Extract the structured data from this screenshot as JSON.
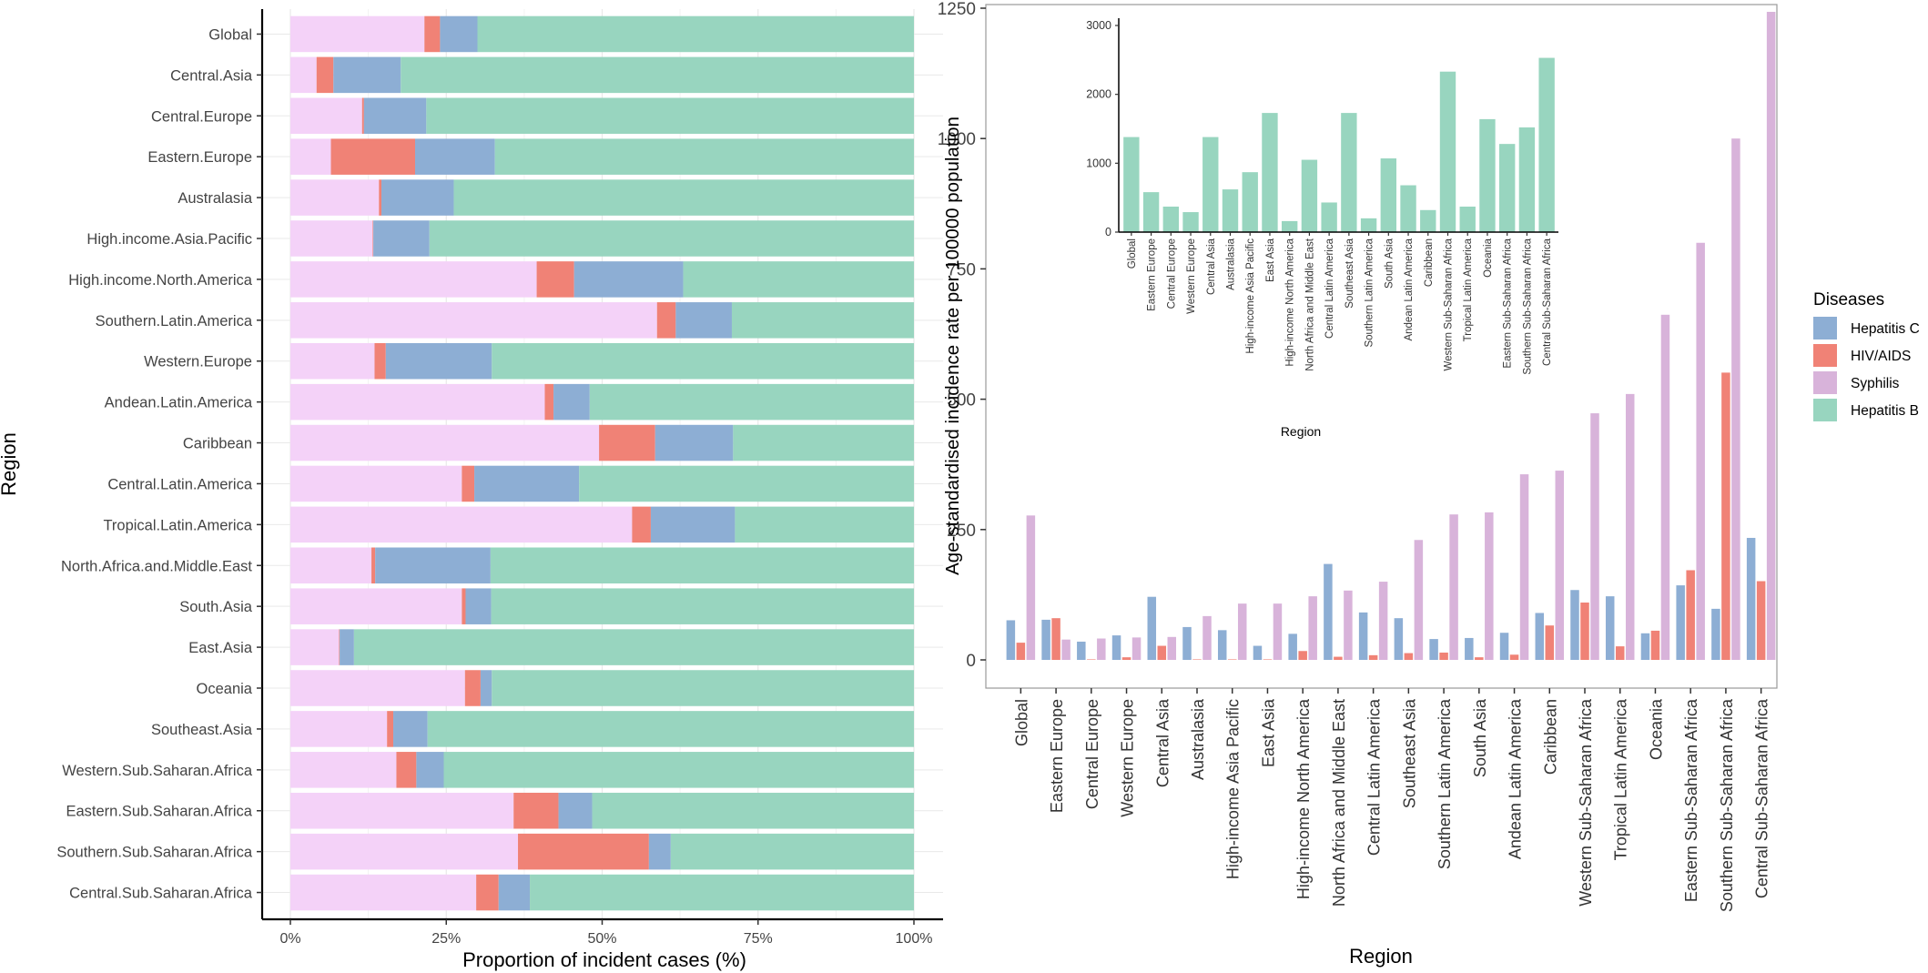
{
  "colors": {
    "Syphilis": "#f4d2f8",
    "HIV/AIDS": "#f08276",
    "Hepatitis C": "#8daed4",
    "Hepatitis B": "#98d5bf",
    "Syphilis_right": "#d8b3da",
    "grid": "#e9e9e9",
    "panel_border": "#9a9a9a"
  },
  "chart_data": [
    {
      "type": "bar",
      "orientation": "horizontal-stacked",
      "xlabel": "Proportion of incident cases (%)",
      "ylabel": "Region",
      "xlim": [
        0,
        100
      ],
      "xticks": [
        "0%",
        "25%",
        "50%",
        "75%",
        "100%"
      ],
      "stack_order": [
        "Syphilis",
        "HIV/AIDS",
        "Hepatitis C",
        "Hepatitis B"
      ],
      "categories": [
        "Global",
        "Central.Asia",
        "Central.Europe",
        "Eastern.Europe",
        "Australasia",
        "High.income.Asia.Pacific",
        "High.income.North.America",
        "Southern.Latin.America",
        "Western.Europe",
        "Andean.Latin.America",
        "Caribbean",
        "Central.Latin.America",
        "Tropical.Latin.America",
        "North.Africa.and.Middle.East",
        "South.Asia",
        "East.Asia",
        "Oceania",
        "Southeast.Asia",
        "Western.Sub.Saharan.Africa",
        "Eastern.Sub.Saharan.Africa",
        "Southern.Sub.Saharan.Africa",
        "Central.Sub.Saharan.Africa"
      ],
      "series": [
        {
          "name": "Syphilis",
          "values": [
            21.5,
            4.2,
            11.5,
            6.5,
            14.2,
            13.2,
            39.5,
            58.8,
            13.5,
            40.8,
            49.5,
            27.5,
            54.8,
            13.0,
            27.5,
            7.8,
            28.0,
            15.5,
            17.0,
            35.8,
            36.5,
            29.8
          ]
        },
        {
          "name": "HIV/AIDS",
          "values": [
            2.5,
            2.7,
            0.3,
            13.5,
            0.4,
            0.1,
            6.0,
            3.0,
            1.8,
            1.4,
            9.0,
            2.0,
            3.0,
            0.6,
            0.6,
            0.1,
            2.5,
            1.0,
            3.2,
            7.2,
            21.0,
            3.6
          ]
        },
        {
          "name": "Hepatitis C",
          "values": [
            6.0,
            10.8,
            10.0,
            12.8,
            11.6,
            9.0,
            17.5,
            9.0,
            17.0,
            5.8,
            12.5,
            16.8,
            13.5,
            18.5,
            4.1,
            2.3,
            1.8,
            5.5,
            4.4,
            5.4,
            3.5,
            5.0
          ]
        },
        {
          "name": "Hepatitis B",
          "values": [
            70.0,
            82.3,
            78.2,
            67.2,
            73.8,
            77.7,
            37.0,
            29.2,
            67.7,
            52.0,
            29.0,
            53.7,
            28.7,
            67.9,
            67.8,
            89.8,
            67.7,
            78.0,
            75.4,
            51.6,
            39.0,
            61.6
          ]
        }
      ]
    },
    {
      "type": "bar",
      "orientation": "vertical-grouped",
      "xlabel": "Region",
      "ylabel": "Age-standardised incidence rate per 100000 population",
      "ylim": [
        0,
        1250
      ],
      "yticks": [
        "0",
        "250",
        "500",
        "750",
        "1000",
        "1250"
      ],
      "categories": [
        "Global",
        "Eastern Europe",
        "Central Europe",
        "Western Europe",
        "Central Asia",
        "Australasia",
        "High-income Asia Pacific",
        "East Asia",
        "High-income North America",
        "North Africa and Middle East",
        "Central Latin America",
        "Southeast Asia",
        "Southern Latin America",
        "South Asia",
        "Andean Latin America",
        "Caribbean",
        "Western Sub-Saharan Africa",
        "Tropical Latin America",
        "Oceania",
        "Eastern Sub-Saharan Africa",
        "Southern Sub-Saharan Africa",
        "Central Sub-Saharan Africa"
      ],
      "legend_title": "Diseases",
      "legend": [
        "Hepatitis C",
        "HIV/AIDS",
        "Syphilis",
        "Hepatitis B"
      ],
      "legend_position": "right",
      "series": [
        {
          "name": "Hepatitis C",
          "values": [
            76,
            77,
            35,
            47,
            121,
            63,
            57,
            27,
            50,
            184,
            91,
            80,
            40,
            42,
            52,
            90,
            134,
            122,
            51,
            143,
            98,
            234
          ]
        },
        {
          "name": "HIV/AIDS",
          "values": [
            33,
            80,
            1,
            5,
            27,
            1,
            1,
            1,
            17,
            6,
            9,
            13,
            14,
            5,
            10,
            66,
            110,
            26,
            56,
            172,
            551,
            151
          ]
        },
        {
          "name": "Syphilis",
          "values": [
            277,
            39,
            41,
            43,
            44,
            84,
            108,
            108,
            122,
            133,
            150,
            230,
            279,
            283,
            356,
            363,
            473,
            510,
            662,
            800,
            1000,
            1243
          ]
        }
      ]
    },
    {
      "type": "bar",
      "orientation": "vertical",
      "inset": true,
      "series_name": "Hepatitis B",
      "xlabel": "Region",
      "ylabel": "",
      "ylim": [
        0,
        3000
      ],
      "yticks": [
        "0",
        "1000",
        "2000",
        "3000"
      ],
      "categories": [
        "Global",
        "Eastern Europe",
        "Central Europe",
        "Western Europe",
        "Central Asia",
        "Australasia",
        "High-income Asia Pacific",
        "East Asia",
        "High-income North America",
        "North Africa and Middle East",
        "Central Latin America",
        "Southeast Asia",
        "Southern Latin America",
        "South Asia",
        "Andean Latin America",
        "Caribbean",
        "Western Sub-Saharan Africa",
        "Tropical Latin America",
        "Oceania",
        "Eastern Sub-Saharan Africa",
        "Southern Sub-Saharan Africa",
        "Central Sub-Saharan Africa"
      ],
      "values": [
        1380,
        580,
        370,
        290,
        1380,
        620,
        870,
        1730,
        160,
        1050,
        430,
        1730,
        200,
        1070,
        680,
        320,
        2330,
        370,
        1640,
        1280,
        1520,
        2530
      ]
    }
  ]
}
